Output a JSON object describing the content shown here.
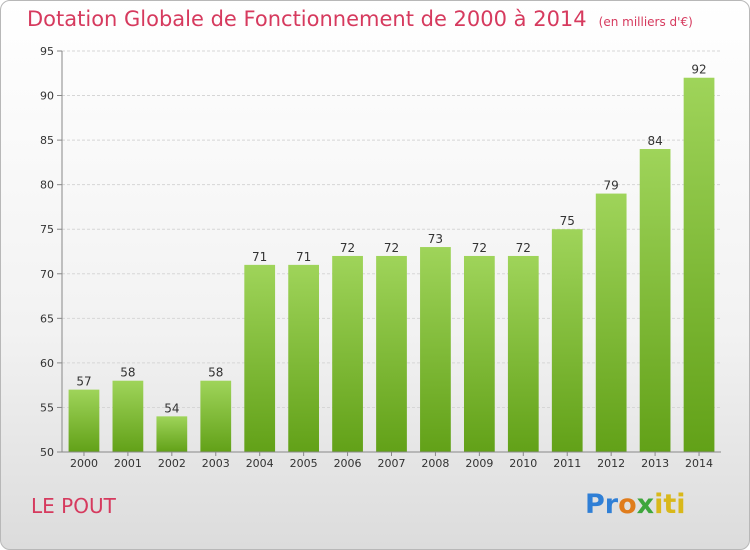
{
  "header": {
    "title": "Dotation Globale de Fonctionnement de 2000 à 2014",
    "unit": "(en milliers d'€)"
  },
  "footer": {
    "commune": "LE POUT",
    "logo_parts": [
      "Pr",
      "o",
      "x",
      "iti"
    ]
  },
  "colors": {
    "title": "#d63a5e",
    "bar_light": "#9fd45a",
    "bar_dark": "#62a118"
  },
  "chart_data": {
    "type": "bar",
    "title": "Dotation Globale de Fonctionnement de 2000 à 2014",
    "subtitle": "(en milliers d'€)",
    "categories": [
      "2000",
      "2001",
      "2002",
      "2003",
      "2004",
      "2005",
      "2006",
      "2007",
      "2008",
      "2009",
      "2010",
      "2011",
      "2012",
      "2013",
      "2014"
    ],
    "values": [
      57,
      58,
      54,
      58,
      71,
      71,
      72,
      72,
      73,
      72,
      72,
      75,
      79,
      84,
      92
    ],
    "ylim": [
      50,
      95
    ],
    "yticks": [
      50,
      55,
      60,
      65,
      70,
      75,
      80,
      85,
      90,
      95
    ],
    "grid": true
  }
}
